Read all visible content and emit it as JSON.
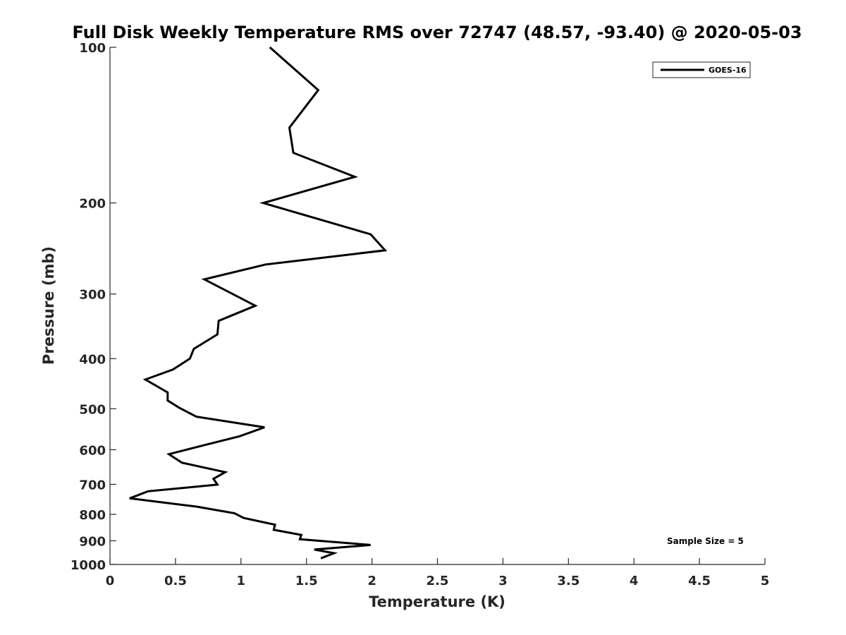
{
  "chart_data": {
    "type": "line",
    "title": "Full Disk Weekly Temperature RMS over 72747 (48.57, -93.40) @ 2020-05-03",
    "xlabel": "Temperature (K)",
    "ylabel": "Pressure (mb)",
    "xlim": [
      0,
      5
    ],
    "ylim": [
      100,
      1000
    ],
    "yscale": "log",
    "y_reversed": true,
    "x_ticks": [
      0,
      0.5,
      1,
      1.5,
      2,
      2.5,
      3,
      3.5,
      4,
      4.5,
      5
    ],
    "x_tick_labels": [
      "0",
      "0.5",
      "1",
      "1.5",
      "2",
      "2.5",
      "3",
      "3.5",
      "4",
      "4.5",
      "5"
    ],
    "y_ticks": [
      100,
      200,
      300,
      400,
      500,
      600,
      700,
      800,
      900,
      1000
    ],
    "y_tick_labels": [
      "100",
      "200",
      "300",
      "400",
      "500",
      "600",
      "700",
      "800",
      "900",
      "1000"
    ],
    "grid": false,
    "legend_position": "top-right",
    "annotation": "Sample Size = 5",
    "series": [
      {
        "name": "GOES-16",
        "color": "#000000",
        "x": [
          1.22,
          1.59,
          1.37,
          1.4,
          1.87,
          1.17,
          1.99,
          2.1,
          1.19,
          0.72,
          1.11,
          0.83,
          0.82,
          0.64,
          0.61,
          0.48,
          0.27,
          0.44,
          0.44,
          0.53,
          0.66,
          1.18,
          0.99,
          0.73,
          0.45,
          0.55,
          0.88,
          0.79,
          0.82,
          0.29,
          0.15,
          0.66,
          0.95,
          1.02,
          1.26,
          1.25,
          1.46,
          1.45,
          1.99,
          1.56,
          1.71,
          1.61
        ],
        "y": [
          100,
          121,
          143,
          160,
          178,
          200,
          230,
          247,
          263,
          281,
          316,
          338,
          359,
          383,
          400,
          420,
          439,
          465,
          482,
          498,
          518,
          543,
          565,
          587,
          612,
          636,
          663,
          683,
          701,
          722,
          745,
          773,
          796,
          813,
          838,
          857,
          877,
          894,
          917,
          936,
          951,
          973
        ]
      }
    ]
  }
}
